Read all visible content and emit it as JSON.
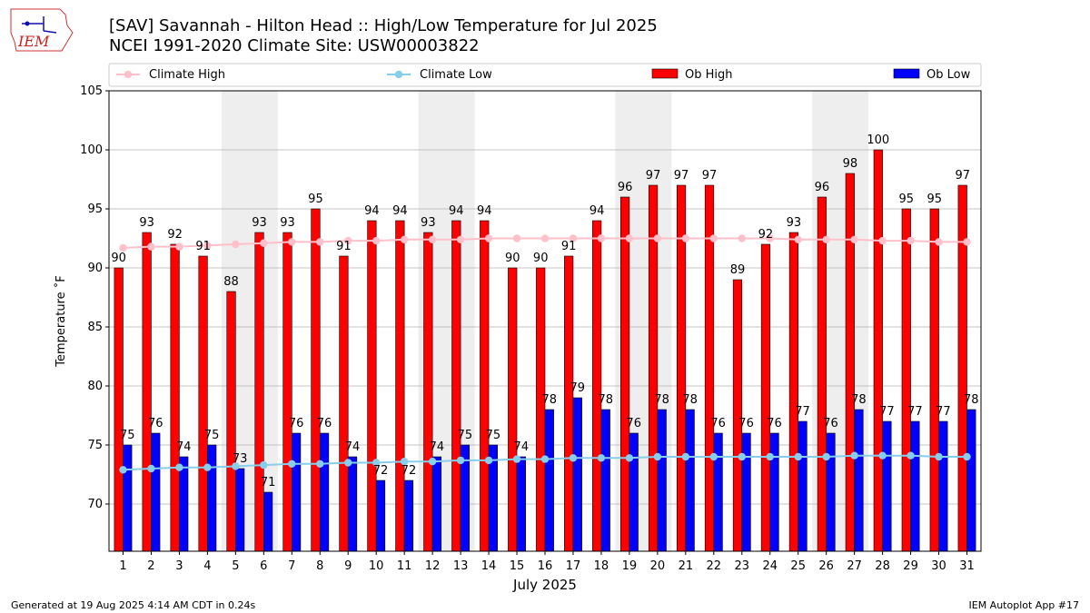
{
  "header": {
    "title": "[SAV] Savannah - Hilton Head :: High/Low Temperature for Jul 2025",
    "subtitle": "NCEI 1991-2020 Climate Site: USW00003822",
    "logo_text": "IEM"
  },
  "footer": {
    "generated": "Generated at 19 Aug 2025 4:14 AM CDT in 0.24s",
    "app": "IEM Autoplot App #17"
  },
  "colors": {
    "ob_high": "#ff0000",
    "ob_low": "#0000ff",
    "climate_high": "#ffc0cb",
    "climate_low": "#87ceeb",
    "weekend_shade": "#eeeeee",
    "grid": "#b0b0b0"
  },
  "chart_data": {
    "type": "bar",
    "xlabel": "July 2025",
    "ylabel": "Temperature ˚F",
    "ylim": [
      66,
      105
    ],
    "yticks": [
      70,
      75,
      80,
      85,
      90,
      95,
      100,
      105
    ],
    "grid": "horizontal",
    "legend_placement": "top",
    "categories": [
      "1",
      "2",
      "3",
      "4",
      "5",
      "6",
      "7",
      "8",
      "9",
      "10",
      "11",
      "12",
      "13",
      "14",
      "15",
      "16",
      "17",
      "18",
      "19",
      "20",
      "21",
      "22",
      "23",
      "24",
      "25",
      "26",
      "27",
      "28",
      "29",
      "30",
      "31"
    ],
    "shaded_days": [
      [
        5,
        6
      ],
      [
        12,
        13
      ],
      [
        19,
        20
      ],
      [
        26,
        27
      ]
    ],
    "series": [
      {
        "name": "Ob High",
        "kind": "bar",
        "values": [
          90,
          93,
          92,
          91,
          88,
          93,
          93,
          95,
          91,
          94,
          94,
          93,
          94,
          94,
          90,
          90,
          91,
          94,
          96,
          97,
          97,
          97,
          89,
          92,
          93,
          96,
          98,
          100,
          95,
          95,
          97
        ]
      },
      {
        "name": "Ob Low",
        "kind": "bar",
        "values": [
          75,
          76,
          74,
          75,
          73,
          71,
          76,
          76,
          74,
          72,
          72,
          74,
          75,
          75,
          74,
          78,
          79,
          78,
          76,
          78,
          78,
          76,
          76,
          76,
          77,
          76,
          78,
          77,
          77,
          77,
          78
        ]
      },
      {
        "name": "Climate High",
        "kind": "line",
        "values": [
          91.7,
          91.8,
          91.8,
          91.9,
          92.0,
          92.1,
          92.2,
          92.2,
          92.3,
          92.3,
          92.4,
          92.4,
          92.4,
          92.5,
          92.5,
          92.5,
          92.5,
          92.5,
          92.5,
          92.5,
          92.5,
          92.5,
          92.5,
          92.5,
          92.4,
          92.4,
          92.4,
          92.3,
          92.3,
          92.2,
          92.2
        ]
      },
      {
        "name": "Climate Low",
        "kind": "line",
        "values": [
          72.9,
          73.0,
          73.1,
          73.1,
          73.2,
          73.3,
          73.4,
          73.4,
          73.5,
          73.5,
          73.6,
          73.6,
          73.7,
          73.7,
          73.8,
          73.8,
          73.9,
          73.9,
          73.9,
          74.0,
          74.0,
          74.0,
          74.0,
          74.0,
          74.0,
          74.0,
          74.1,
          74.1,
          74.1,
          74.0,
          74.0
        ]
      }
    ]
  }
}
